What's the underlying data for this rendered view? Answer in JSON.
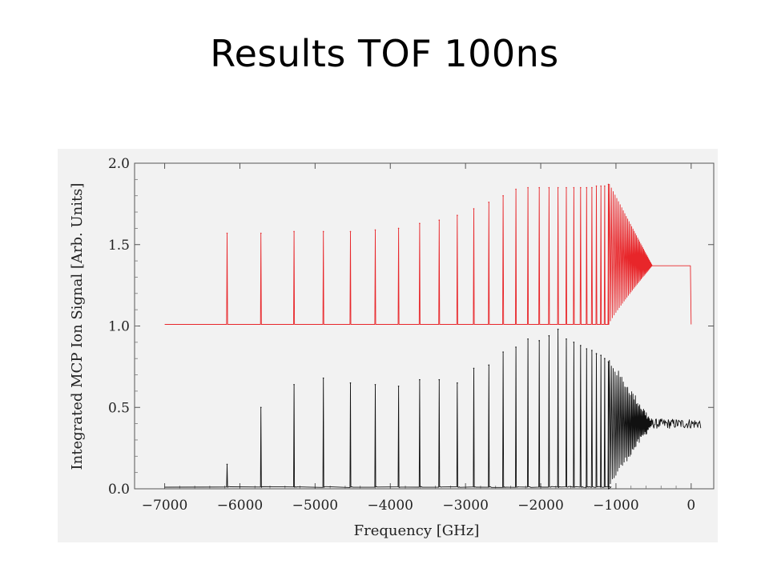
{
  "slide": {
    "title": "Results TOF 100ns"
  },
  "chart_data": {
    "type": "line",
    "title": "",
    "xlabel": "Frequency [GHz]",
    "ylabel": "Integrated MCP Ion Signal [Arb. Units]",
    "xlim": [
      -7400,
      300
    ],
    "ylim": [
      0.0,
      2.0
    ],
    "x_ticks": [
      -7000,
      -6000,
      -5000,
      -4000,
      -3000,
      -2000,
      -1000,
      0
    ],
    "x_tick_labels": [
      "−7000",
      "−6000",
      "−5000",
      "−4000",
      "−3000",
      "−2000",
      "−1000",
      "0"
    ],
    "y_ticks": [
      0.0,
      0.5,
      1.0,
      1.5,
      2.0
    ],
    "y_tick_labels": [
      "0.0",
      "0.5",
      "1.0",
      "1.5",
      "2.0"
    ],
    "grid": false,
    "colors": {
      "simulation": "#e8262a",
      "measurement": "#111111",
      "axes": "#555555",
      "background": "#f2f2f2"
    },
    "series": [
      {
        "role": "simulation",
        "baseline": 1.01,
        "x_start": -7000,
        "x_end": -50,
        "peaks": [
          {
            "x": -6170,
            "y": 1.57
          },
          {
            "x": -5720,
            "y": 1.57
          },
          {
            "x": -5280,
            "y": 1.58
          },
          {
            "x": -4890,
            "y": 1.58
          },
          {
            "x": -4530,
            "y": 1.58
          },
          {
            "x": -4200,
            "y": 1.59
          },
          {
            "x": -3890,
            "y": 1.6
          },
          {
            "x": -3610,
            "y": 1.63
          },
          {
            "x": -3350,
            "y": 1.65
          },
          {
            "x": -3110,
            "y": 1.68
          },
          {
            "x": -2890,
            "y": 1.72
          },
          {
            "x": -2690,
            "y": 1.76
          },
          {
            "x": -2500,
            "y": 1.8
          },
          {
            "x": -2330,
            "y": 1.84
          },
          {
            "x": -2170,
            "y": 1.85
          },
          {
            "x": -2020,
            "y": 1.85
          },
          {
            "x": -1890,
            "y": 1.85
          },
          {
            "x": -1770,
            "y": 1.85
          },
          {
            "x": -1660,
            "y": 1.85
          },
          {
            "x": -1560,
            "y": 1.85
          },
          {
            "x": -1470,
            "y": 1.85
          },
          {
            "x": -1390,
            "y": 1.85
          },
          {
            "x": -1320,
            "y": 1.85
          },
          {
            "x": -1260,
            "y": 1.86
          },
          {
            "x": -1200,
            "y": 1.86
          },
          {
            "x": -1150,
            "y": 1.86
          },
          {
            "x": -1100,
            "y": 1.87
          }
        ],
        "merge": {
          "start_x": -1100,
          "end_x": -520,
          "level": 1.37
        },
        "plateau": {
          "level": 1.37,
          "end_x": -10,
          "drop_to": 1.01,
          "drop_x": 0
        }
      },
      {
        "role": "measurement",
        "baseline": 0.01,
        "x_start": -7000,
        "x_end": 130,
        "peaks": [
          {
            "x": -6170,
            "y": 0.15
          },
          {
            "x": -5720,
            "y": 0.5
          },
          {
            "x": -5280,
            "y": 0.64
          },
          {
            "x": -4890,
            "y": 0.68
          },
          {
            "x": -4530,
            "y": 0.65
          },
          {
            "x": -4200,
            "y": 0.64
          },
          {
            "x": -3890,
            "y": 0.63
          },
          {
            "x": -3610,
            "y": 0.67
          },
          {
            "x": -3350,
            "y": 0.67
          },
          {
            "x": -3110,
            "y": 0.65
          },
          {
            "x": -2890,
            "y": 0.74
          },
          {
            "x": -2690,
            "y": 0.76
          },
          {
            "x": -2500,
            "y": 0.84
          },
          {
            "x": -2330,
            "y": 0.87
          },
          {
            "x": -2170,
            "y": 0.92
          },
          {
            "x": -2020,
            "y": 0.91
          },
          {
            "x": -1890,
            "y": 0.94
          },
          {
            "x": -1770,
            "y": 0.98
          },
          {
            "x": -1660,
            "y": 0.92
          },
          {
            "x": -1560,
            "y": 0.9
          },
          {
            "x": -1470,
            "y": 0.88
          },
          {
            "x": -1390,
            "y": 0.86
          },
          {
            "x": -1320,
            "y": 0.85
          },
          {
            "x": -1260,
            "y": 0.83
          },
          {
            "x": -1200,
            "y": 0.82
          },
          {
            "x": -1150,
            "y": 0.8
          },
          {
            "x": -1100,
            "y": 0.78
          }
        ],
        "merge": {
          "start_x": -1100,
          "end_x": -520,
          "level": 0.4
        },
        "plateau": {
          "level": 0.4,
          "end_x": 130
        }
      }
    ]
  }
}
